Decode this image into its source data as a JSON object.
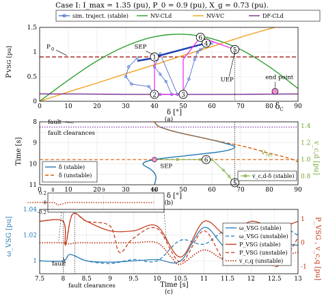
{
  "figure": {
    "title": "Case I:  I_max = 1.35 (pu),  P_0 = 0.9 (pu),  X_g = 0.73 (pu).",
    "colors": {
      "sim": "#4a6fd0",
      "nvcld": "#2ca02c",
      "nvvc": "#f0a020",
      "dfcld": "#7b2d8e",
      "p0": "#a01818",
      "magenta": "#f030f0",
      "blue": "#1f77b4",
      "orange": "#d95f02",
      "olive": "#6ea62a",
      "darkred": "#c03010"
    }
  },
  "chart_data": [
    {
      "id": "a",
      "type": "line",
      "caption": "(a)",
      "xlabel": "δ [°]",
      "ylabel": "P_VSG [pu]",
      "xlim": [
        0,
        90
      ],
      "ylim": [
        0,
        1.5
      ],
      "xticks": [
        0,
        10,
        20,
        30,
        40,
        50,
        60,
        70,
        80,
        90
      ],
      "yticks": [
        0,
        0.5,
        1,
        1.5
      ],
      "grid": true,
      "legend": {
        "placement": "top-outside",
        "entries": [
          "sim. traject. (stable)",
          "NV-CLd",
          "NV-VC",
          "DF-CLd"
        ]
      },
      "series": [
        {
          "name": "NV-CLd",
          "style": "solid",
          "x": [
            0,
            10,
            20,
            30,
            40,
            50,
            60,
            70,
            80,
            90
          ],
          "y": [
            0.0,
            0.43,
            0.82,
            1.12,
            1.31,
            1.36,
            1.27,
            1.05,
            0.7,
            0.26
          ]
        },
        {
          "name": "NV-VC",
          "style": "solid",
          "x": [
            0,
            10,
            20,
            30,
            40,
            50,
            60,
            70,
            80,
            85,
            90
          ],
          "y": [
            0.0,
            0.19,
            0.37,
            0.56,
            0.74,
            0.93,
            1.11,
            1.3,
            1.47,
            1.55,
            1.62
          ]
        },
        {
          "name": "DF-CLd",
          "style": "solid",
          "x": [
            0,
            10,
            20,
            30,
            40,
            50,
            60,
            70,
            80,
            90
          ],
          "y": [
            0.15,
            0.148,
            0.145,
            0.142,
            0.14,
            0.14,
            0.14,
            0.142,
            0.145,
            0.148
          ]
        },
        {
          "name": "sim. traject. (stable)",
          "style": "circle-markers",
          "x": [
            34,
            31,
            30,
            32,
            38,
            40,
            42,
            46,
            44,
            42,
            40,
            41,
            40,
            42,
            48,
            50,
            52,
            54,
            55,
            56,
            58,
            60
          ],
          "y": [
            0.88,
            0.7,
            0.5,
            0.35,
            0.3,
            0.14,
            0.14,
            0.14,
            0.4,
            0.55,
            0.7,
            0.85,
            0.9,
            0.96,
            0.14,
            0.2,
            0.45,
            0.85,
            1.0,
            1.05,
            1.12,
            1.18
          ]
        }
      ],
      "reference_lines": [
        {
          "label": "P_0",
          "axis": "y",
          "value": 0.9,
          "style": "dashed"
        }
      ],
      "points": [
        {
          "label": "1",
          "x": 40,
          "y": 0.9
        },
        {
          "label": "2",
          "x": 40,
          "y": 0.14
        },
        {
          "label": "3",
          "x": 50,
          "y": 0.14
        },
        {
          "label": "4",
          "x": 58,
          "y": 1.18
        },
        {
          "label": "5",
          "x": 68,
          "y": 1.05
        },
        {
          "label": "6",
          "x": 56,
          "y": 1.3
        },
        {
          "label": "end point",
          "x": 82,
          "y": 0.2
        }
      ],
      "annotations": [
        "SEP",
        "UEP",
        "end point",
        "δ_c"
      ]
    },
    {
      "id": "b",
      "type": "line",
      "caption": "(b)",
      "xlabel": "δ [°]",
      "ylabel": "Time [s]",
      "ylabel_right": "v_c,d [pu]",
      "xlim": [
        0,
        90
      ],
      "ylim": [
        8,
        11
      ],
      "ylim_right": [
        0.7,
        1.45
      ],
      "xticks": [
        0,
        10,
        20,
        30,
        40,
        50,
        60,
        70,
        80,
        90
      ],
      "yticks": [
        8,
        8.5,
        9,
        9.5,
        10,
        10.5,
        11
      ],
      "yticks_right": [
        0.8,
        1.0,
        1.2,
        1.4
      ],
      "grid": true,
      "legend": {
        "placement": "bottom-left",
        "entries": [
          "δ (stable)",
          "δ (unstable)"
        ]
      },
      "legend_right": {
        "placement": "bottom-right",
        "entries": [
          "v_c,d-δ (stable)"
        ]
      },
      "series": [
        {
          "name": "δ (stable)",
          "style": "solid",
          "t": [
            8.0,
            8.1,
            8.25,
            8.5,
            8.8,
            9.0,
            9.2,
            9.4,
            9.6,
            9.8,
            10.0,
            10.3,
            10.6,
            11.0
          ],
          "delta": [
            40,
            40.5,
            42,
            48,
            58,
            64,
            68,
            64,
            52,
            40,
            36,
            39,
            40.5,
            40
          ]
        },
        {
          "name": "δ (unstable)",
          "style": "dashed",
          "t": [
            8.0,
            8.1,
            8.25,
            8.5,
            8.8,
            9.0,
            9.2,
            9.5,
            9.7,
            9.9
          ],
          "delta": [
            40,
            40.5,
            42,
            48,
            58,
            65,
            72,
            80,
            86,
            90
          ]
        },
        {
          "name": "v_c,d-δ (stable)",
          "style": "circle-markers",
          "t": [
            9.8,
            9.8,
            9.8,
            9.8,
            10.3,
            10.6,
            11.0
          ],
          "delta": [
            40,
            48,
            56,
            60,
            64,
            66,
            68
          ]
        }
      ],
      "reference_lines": [
        {
          "label": "fault",
          "axis": "y",
          "value": 8.0,
          "style": "dotted"
        },
        {
          "label": "fault clearances",
          "axis": "y",
          "value": 8.25,
          "style": "dotted"
        },
        {
          "label": "V_ref",
          "axis": "y",
          "value": 9.8,
          "style": "dashed"
        }
      ],
      "annotations": [
        "fault",
        "fault clearances",
        "SEP",
        "V_ref"
      ]
    },
    {
      "id": "c",
      "type": "line",
      "caption": "(c)",
      "xlabel": "Time [s]",
      "ylabel": "ω_VSG [pu]",
      "ylabel_right": "P_VSG , v_c,q [pu]",
      "xlim": [
        7.5,
        13
      ],
      "ylim": [
        0.99,
        1.04
      ],
      "ylim_right": [
        -1.3,
        1.4
      ],
      "xticks": [
        7.5,
        8,
        8.5,
        9,
        9.5,
        10,
        10.5,
        11,
        11.5,
        12,
        12.5,
        13
      ],
      "yticks": [
        1,
        1.02,
        1.04
      ],
      "yticks_right": [
        -1,
        0,
        1
      ],
      "grid": true,
      "legend": {
        "placement": "right-inside",
        "entries": [
          "ω_VSG (stable)",
          "ω_VSG (unstable)",
          "P_VSG (stable)",
          "P_VSG (unstable)",
          "v_c,q (unstable)"
        ]
      },
      "inset": {
        "xlim": [
          7.9,
          10.2
        ],
        "ylim": [
          -0.2,
          0.2
        ],
        "yticks": [
          -0.2,
          0,
          0.2
        ],
        "xticks": [
          8,
          9,
          10
        ]
      },
      "series": [
        {
          "name": "ω_VSG (stable)",
          "style": "solid",
          "x": [
            7.5,
            8.0,
            8.15,
            8.5,
            9.0,
            9.5,
            10.0,
            10.5,
            11.0,
            11.5,
            12.0,
            12.5,
            13.0
          ],
          "y": [
            1.0,
            1.0,
            1.005,
            1.0,
            0.999,
            1.0,
            1.001,
            1.0,
            1.026,
            1.01,
            1.025,
            1.015,
            1.012
          ]
        },
        {
          "name": "ω_VSG (unstable)",
          "style": "dashed",
          "x": [
            7.5,
            8.0,
            8.15,
            8.5,
            9.0,
            9.5,
            10.0,
            10.5,
            11.0,
            11.5,
            12.0,
            12.5,
            13.0
          ],
          "y": [
            1.0,
            1.0,
            1.005,
            1.0,
            0.998,
            1.001,
            1.0,
            1.016,
            1.013,
            1.024,
            1.015,
            1.028,
            1.02
          ]
        },
        {
          "name": "P_VSG (stable)",
          "style": "solid",
          "x": [
            7.5,
            8.0,
            8.05,
            8.2,
            8.5,
            9.0,
            9.5,
            10.0,
            10.5,
            11.0,
            11.5,
            12.0,
            12.5,
            13.0
          ],
          "y": [
            0.9,
            0.9,
            -0.1,
            1.2,
            0.9,
            0.5,
            0.5,
            0.7,
            -0.6,
            0.9,
            0.3,
            0.9,
            0.6,
            0.9
          ]
        },
        {
          "name": "P_VSG (unstable)",
          "style": "dashed",
          "x": [
            7.5,
            8.0,
            8.05,
            8.2,
            8.5,
            9.0,
            9.2,
            9.5,
            10.0,
            10.5,
            11.0,
            11.5,
            12.0,
            12.5,
            13.0
          ],
          "y": [
            0.9,
            0.9,
            -0.1,
            1.2,
            0.9,
            0.7,
            -0.4,
            0.2,
            0.6,
            -0.8,
            0.5,
            -0.8,
            0.8,
            -1.0,
            0.2
          ]
        },
        {
          "name": "v_c,q (unstable)",
          "style": "dotted",
          "x": [
            7.5,
            8.0,
            8.1,
            8.3,
            8.6,
            9.0,
            9.5,
            10.0,
            10.3,
            10.5,
            11.0,
            11.5,
            12.0,
            12.5,
            13.0
          ],
          "y": [
            0.0,
            0.0,
            -0.05,
            0.0,
            0.0,
            0.0,
            0.0,
            0.0,
            -0.6,
            -0.9,
            -0.3,
            -0.7,
            0.2,
            -0.5,
            -0.4
          ]
        }
      ],
      "annotations": [
        "fault",
        "fault clearances"
      ]
    }
  ]
}
